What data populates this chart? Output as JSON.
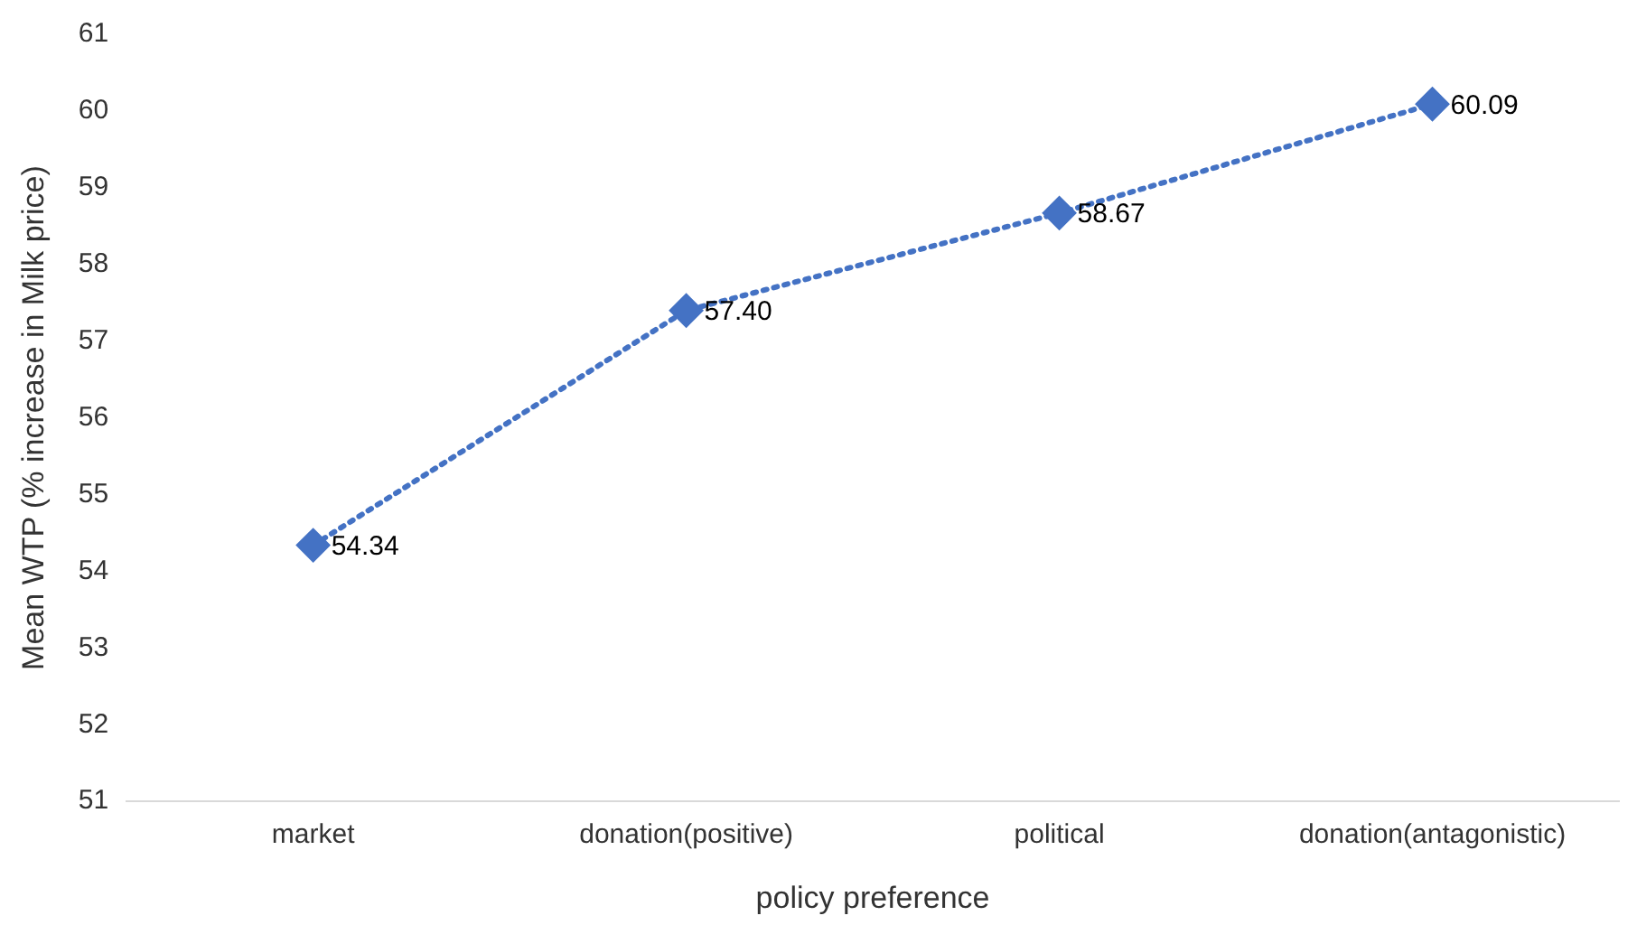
{
  "chart_data": {
    "type": "line",
    "xlabel": "policy preference",
    "ylabel": "Mean WTP (% increase in Milk price)",
    "categories": [
      "market",
      "donation(positive)",
      "political",
      "donation(antagonistic)"
    ],
    "series": [
      {
        "color": "#4472c4",
        "values": [
          54.34,
          57.4,
          58.67,
          60.09
        ],
        "value_labels": [
          "54.34",
          "57.40",
          "58.67",
          "60.09"
        ]
      }
    ],
    "ylim": [
      51,
      61
    ],
    "yticks": [
      51,
      52,
      53,
      54,
      55,
      56,
      57,
      58,
      59,
      60,
      61
    ],
    "grid": false,
    "legend": false,
    "marker": "diamond",
    "line_style": "dotted"
  }
}
